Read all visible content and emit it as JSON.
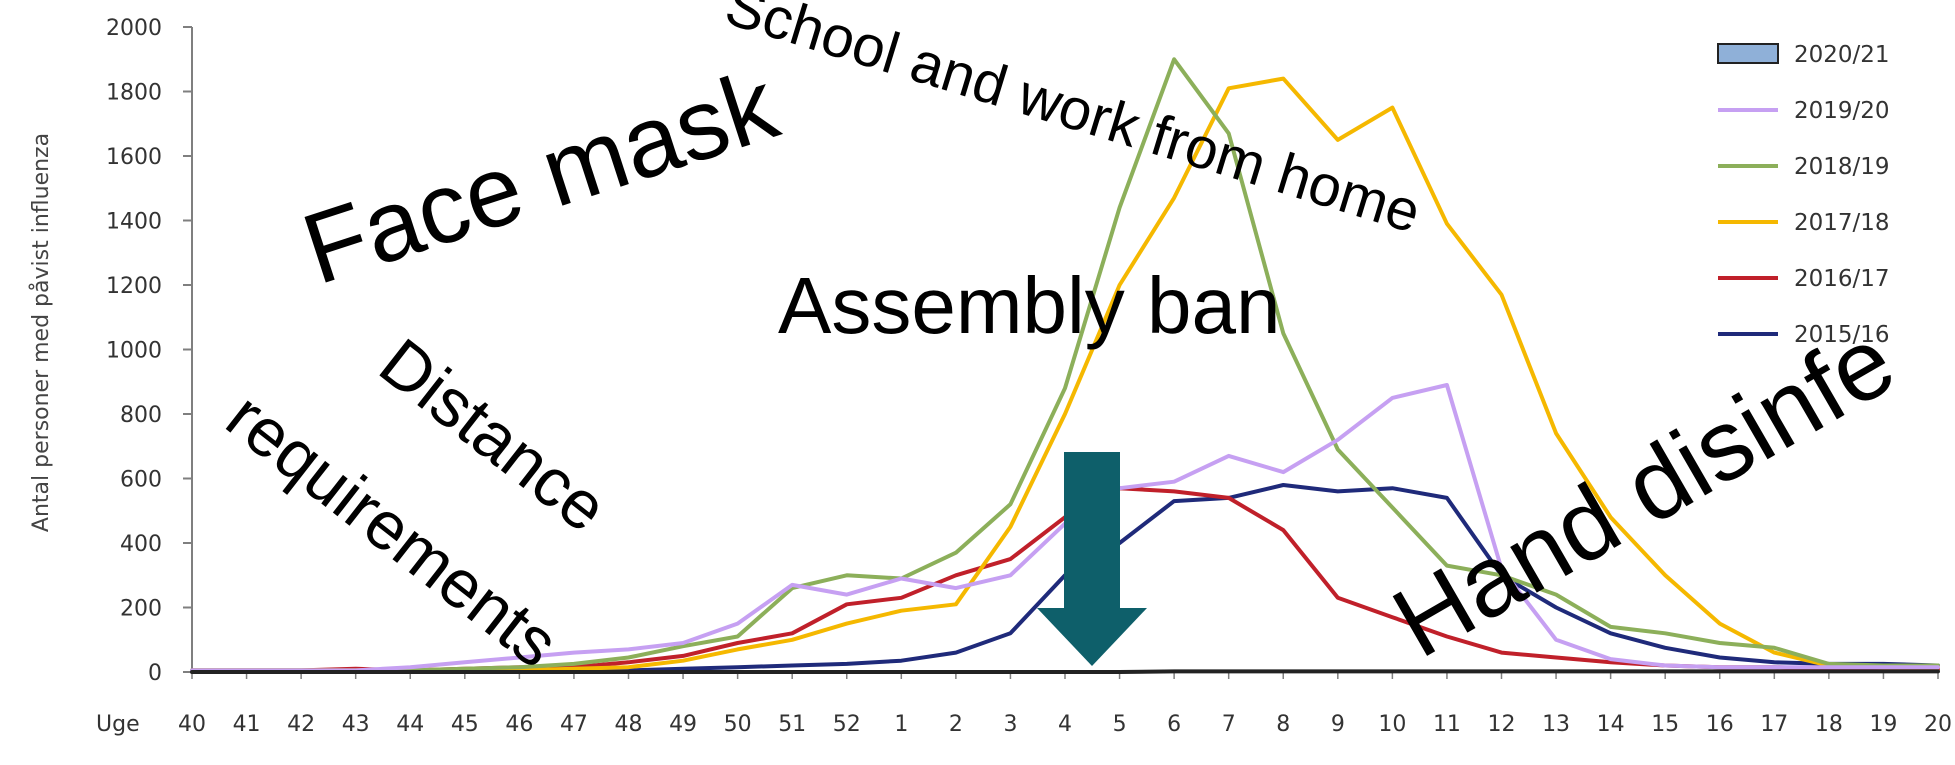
{
  "chart_data": {
    "type": "line",
    "ylabel": "Antal personer med påvist influenza",
    "x_prefix": "Uge",
    "categories": [
      "40",
      "41",
      "42",
      "43",
      "44",
      "45",
      "46",
      "47",
      "48",
      "49",
      "50",
      "51",
      "52",
      "1",
      "2",
      "3",
      "4",
      "5",
      "6",
      "7",
      "8",
      "9",
      "10",
      "11",
      "12",
      "13",
      "14",
      "15",
      "16",
      "17",
      "18",
      "19",
      "20"
    ],
    "ylim": [
      0,
      2000
    ],
    "yticks": [
      0,
      200,
      400,
      600,
      800,
      1000,
      1200,
      1400,
      1600,
      1800,
      2000
    ],
    "grid": false,
    "legend_position": "right",
    "series": [
      {
        "name": "2020/21",
        "color": "#222222",
        "legend_style": "box",
        "legend_fill": "#8fb0d8",
        "values": [
          0,
          0,
          0,
          0,
          0,
          0,
          0,
          0,
          0,
          0,
          0,
          0,
          0,
          0,
          0,
          0,
          0,
          0,
          2,
          2,
          2,
          2,
          2,
          2,
          2,
          2,
          2,
          2,
          2,
          2,
          2,
          2,
          2
        ]
      },
      {
        "name": "2019/20",
        "color": "#c6a0f2",
        "legend_style": "line",
        "values": [
          5,
          5,
          5,
          5,
          15,
          30,
          45,
          60,
          70,
          90,
          150,
          270,
          240,
          290,
          260,
          300,
          460,
          570,
          590,
          670,
          620,
          720,
          850,
          890,
          320,
          100,
          40,
          20,
          15,
          15,
          15,
          15,
          15
        ]
      },
      {
        "name": "2018/19",
        "color": "#8caf5a",
        "legend_style": "line",
        "values": [
          5,
          5,
          5,
          5,
          5,
          10,
          15,
          25,
          45,
          80,
          110,
          260,
          300,
          290,
          370,
          520,
          880,
          1440,
          1900,
          1670,
          1050,
          690,
          510,
          330,
          300,
          240,
          140,
          120,
          90,
          75,
          25,
          20,
          20
        ]
      },
      {
        "name": "2017/18",
        "color": "#f5b800",
        "legend_style": "line",
        "values": [
          5,
          5,
          5,
          5,
          5,
          5,
          5,
          10,
          15,
          35,
          70,
          100,
          150,
          190,
          210,
          450,
          800,
          1200,
          1470,
          1810,
          1840,
          1650,
          1750,
          1390,
          1170,
          740,
          480,
          300,
          150,
          60,
          20,
          15,
          15
        ]
      },
      {
        "name": "2016/17",
        "color": "#c0202a",
        "legend_style": "line",
        "values": [
          5,
          5,
          5,
          10,
          5,
          10,
          15,
          15,
          30,
          50,
          90,
          120,
          210,
          230,
          300,
          350,
          480,
          570,
          560,
          540,
          440,
          230,
          170,
          110,
          60,
          45,
          30,
          20,
          15,
          15,
          10,
          10,
          10
        ]
      },
      {
        "name": "2015/16",
        "color": "#1f2a7a",
        "legend_style": "line",
        "values": [
          5,
          5,
          5,
          5,
          5,
          5,
          5,
          5,
          5,
          10,
          15,
          20,
          25,
          35,
          60,
          120,
          300,
          400,
          530,
          540,
          580,
          560,
          570,
          540,
          300,
          200,
          120,
          75,
          45,
          30,
          25,
          25,
          20
        ]
      }
    ],
    "annotations": [
      {
        "text": "Face mask"
      },
      {
        "text": "School and work from home"
      },
      {
        "text": "Assembly ban"
      },
      {
        "text": "Distance"
      },
      {
        "text": "requirements"
      },
      {
        "text": "Hand disinfe"
      }
    ],
    "arrow_color": "#0e5f6a"
  }
}
